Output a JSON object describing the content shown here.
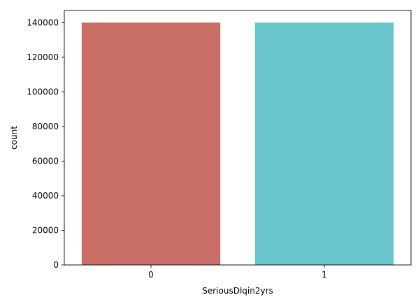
{
  "chart_data": {
    "type": "bar",
    "categories": [
      "0",
      "1"
    ],
    "values": [
      140000,
      140000
    ],
    "colors": [
      "#c96e66",
      "#68c5cd"
    ],
    "xlabel": "SeriousDlqin2yrs",
    "ylabel": "count",
    "ylim": [
      0,
      147000
    ],
    "yticks": [
      0,
      20000,
      40000,
      60000,
      80000,
      100000,
      120000,
      140000
    ],
    "grid": false,
    "legend": "none"
  }
}
